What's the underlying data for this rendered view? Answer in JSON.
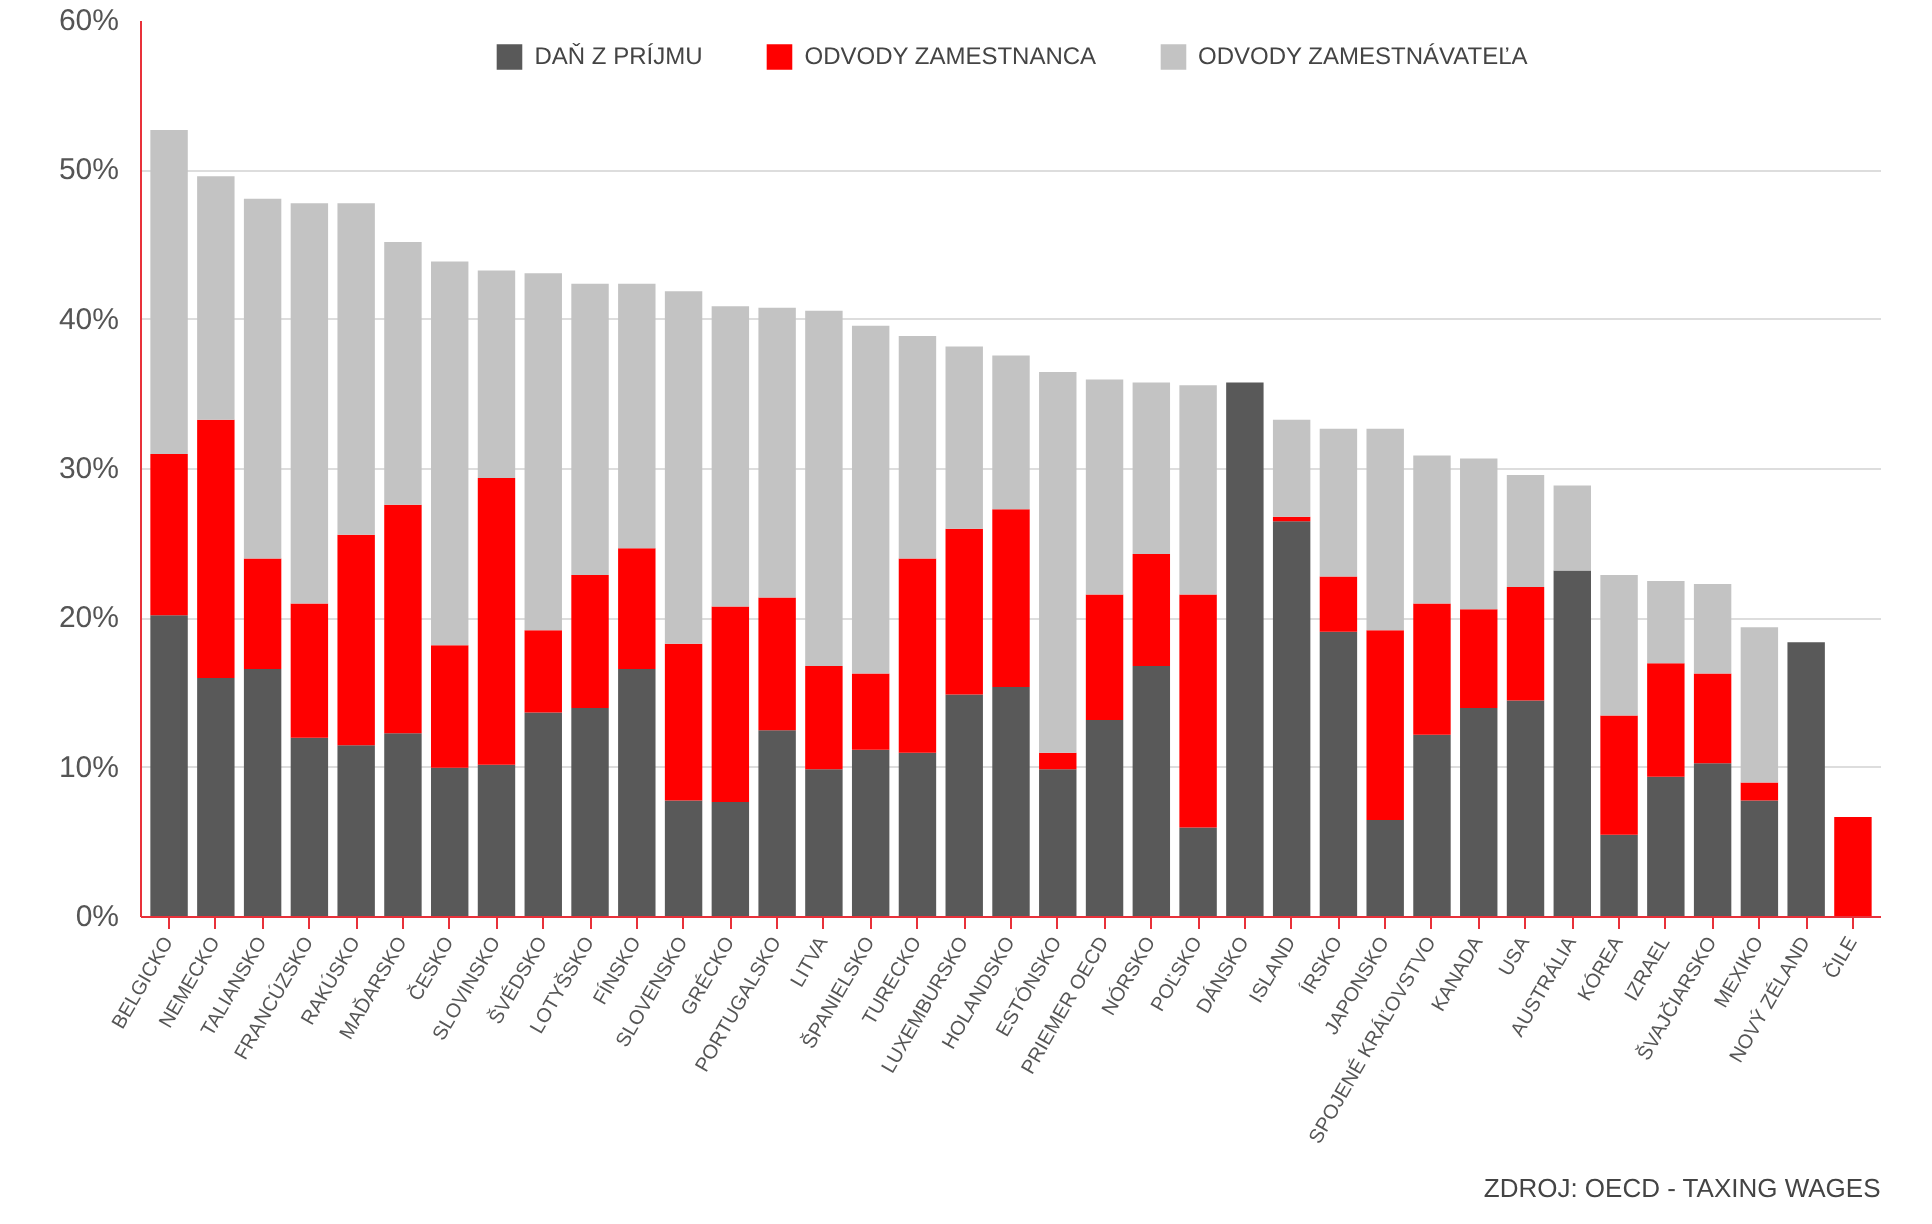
{
  "chart_data": {
    "type": "bar",
    "stacked": true,
    "categories": [
      "BELGICKO",
      "NEMECKO",
      "TALIANSKO",
      "FRANCÚZSKO",
      "RAKÚSKO",
      "MAĎARSKO",
      "ČESKO",
      "SLOVINSKO",
      "ŠVÉDSKO",
      "LOTYŠSKO",
      "FÍNSKO",
      "SLOVENSKO",
      "GRÉCKO",
      "PORTUGALSKO",
      "LITVA",
      "ŠPANIELSKO",
      "TURECKO",
      "LUXEMBURSKO",
      "HOLANDSKO",
      "ESTÓNSKO",
      "PRIEMER OECD",
      "NÓRSKO",
      "POĽSKO",
      "DÁNSKO",
      "ISLAND",
      "ÍRSKO",
      "JAPONSKO",
      "SPOJENÉ KRÁĽOVSTVO",
      "KANADA",
      "USA",
      "AUSTRÁLIA",
      "KÓREA",
      "IZRAEL",
      "ŠVAJČIARSKO",
      "MEXIKO",
      "NOVÝ ZÉLAND",
      "ČILE"
    ],
    "series": [
      {
        "name": "DAŇ Z PRÍJMU",
        "color": "#595959",
        "values": [
          20.2,
          16.0,
          16.6,
          12.0,
          11.5,
          12.3,
          10.0,
          10.2,
          13.7,
          14.0,
          16.6,
          7.8,
          7.7,
          12.5,
          9.9,
          11.2,
          11.0,
          14.9,
          15.4,
          9.9,
          13.2,
          16.8,
          6.0,
          35.8,
          26.5,
          19.1,
          6.5,
          12.2,
          14.0,
          14.5,
          23.2,
          5.5,
          9.4,
          10.3,
          7.8,
          18.4,
          0
        ]
      },
      {
        "name": "ODVODY ZAMESTNANCA",
        "color": "#ff0000",
        "values": [
          10.8,
          17.3,
          7.4,
          9.0,
          14.1,
          15.3,
          8.2,
          19.2,
          5.5,
          8.9,
          8.1,
          10.5,
          13.1,
          8.9,
          6.9,
          5.1,
          13.0,
          11.1,
          11.9,
          1.1,
          8.4,
          7.5,
          15.6,
          0,
          0.3,
          3.7,
          12.7,
          8.8,
          6.6,
          7.6,
          0,
          8.0,
          7.6,
          6.0,
          1.2,
          0,
          6.7
        ]
      },
      {
        "name": "ODVODY ZAMESTNÁVATEĽA",
        "color": "#c3c3c3",
        "values": [
          21.7,
          16.3,
          24.1,
          26.8,
          22.2,
          17.6,
          25.7,
          13.9,
          23.9,
          19.5,
          17.7,
          23.6,
          20.1,
          19.4,
          23.8,
          23.3,
          14.9,
          12.2,
          10.3,
          25.5,
          14.4,
          11.5,
          14.0,
          0,
          6.5,
          9.9,
          13.5,
          9.9,
          10.1,
          7.5,
          5.7,
          9.4,
          5.5,
          6.0,
          10.4,
          0,
          0
        ]
      }
    ],
    "ylim": [
      0,
      60
    ],
    "yticks": [
      {
        "value": 0,
        "label": "0%"
      },
      {
        "value": 10,
        "label": "10%"
      },
      {
        "value": 20,
        "label": "20%"
      },
      {
        "value": 30,
        "label": "30%"
      },
      {
        "value": 40,
        "label": "40%"
      },
      {
        "value": 50,
        "label": "50%"
      },
      {
        "value": 60,
        "label": "60%"
      }
    ],
    "grid": "y",
    "legend": "top",
    "annotations": [
      "ZDROJ: OECD - TAXING WAGES"
    ]
  }
}
